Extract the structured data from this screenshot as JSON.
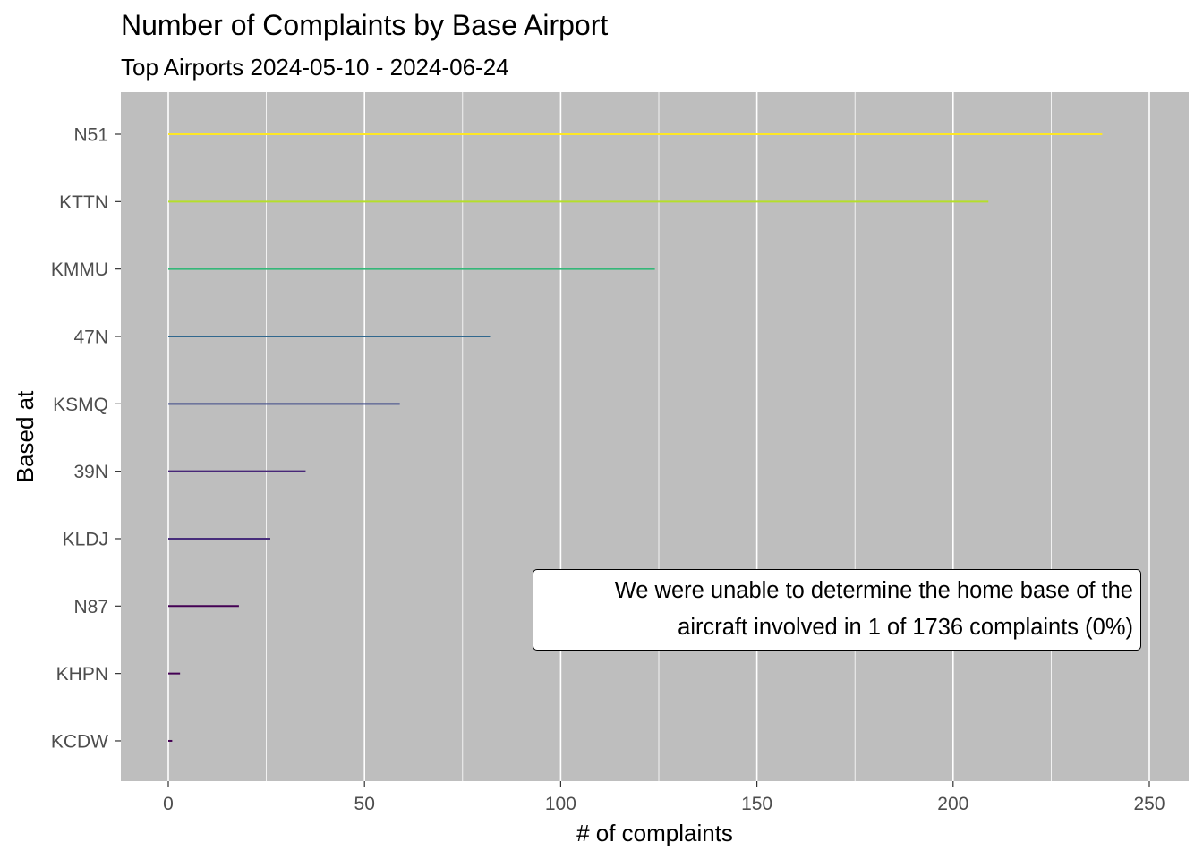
{
  "chart_data": {
    "type": "bar",
    "orientation": "horizontal",
    "title": "Number of Complaints by Base Airport",
    "subtitle": "Top Airports 2024-05-10 - 2024-06-24",
    "xlabel": "# of complaints",
    "ylabel": "Based at",
    "xlim": [
      -12,
      260
    ],
    "xticks": [
      0,
      50,
      100,
      150,
      200,
      250
    ],
    "grid": true,
    "categories": [
      "N51",
      "KTTN",
      "KMMU",
      "47N",
      "KSMQ",
      "39N",
      "KLDJ",
      "N87",
      "KHPN",
      "KCDW"
    ],
    "values": [
      238,
      209,
      124,
      82,
      59,
      35,
      26,
      18,
      3,
      1
    ],
    "colors": [
      "#fde725",
      "#b5de2b",
      "#35b779",
      "#31688e",
      "#3e4a89",
      "#482878",
      "#472d7b",
      "#440154",
      "#440154",
      "#440154"
    ],
    "annotation": {
      "line1": "We were unable to determine the home base of the",
      "line2": "aircraft involved in 1 of 1736 complaints (0%)"
    }
  },
  "colors": {
    "panel_background": "#bebebe",
    "grid": "#ffffff",
    "tick_label": "#4d4d4d"
  }
}
